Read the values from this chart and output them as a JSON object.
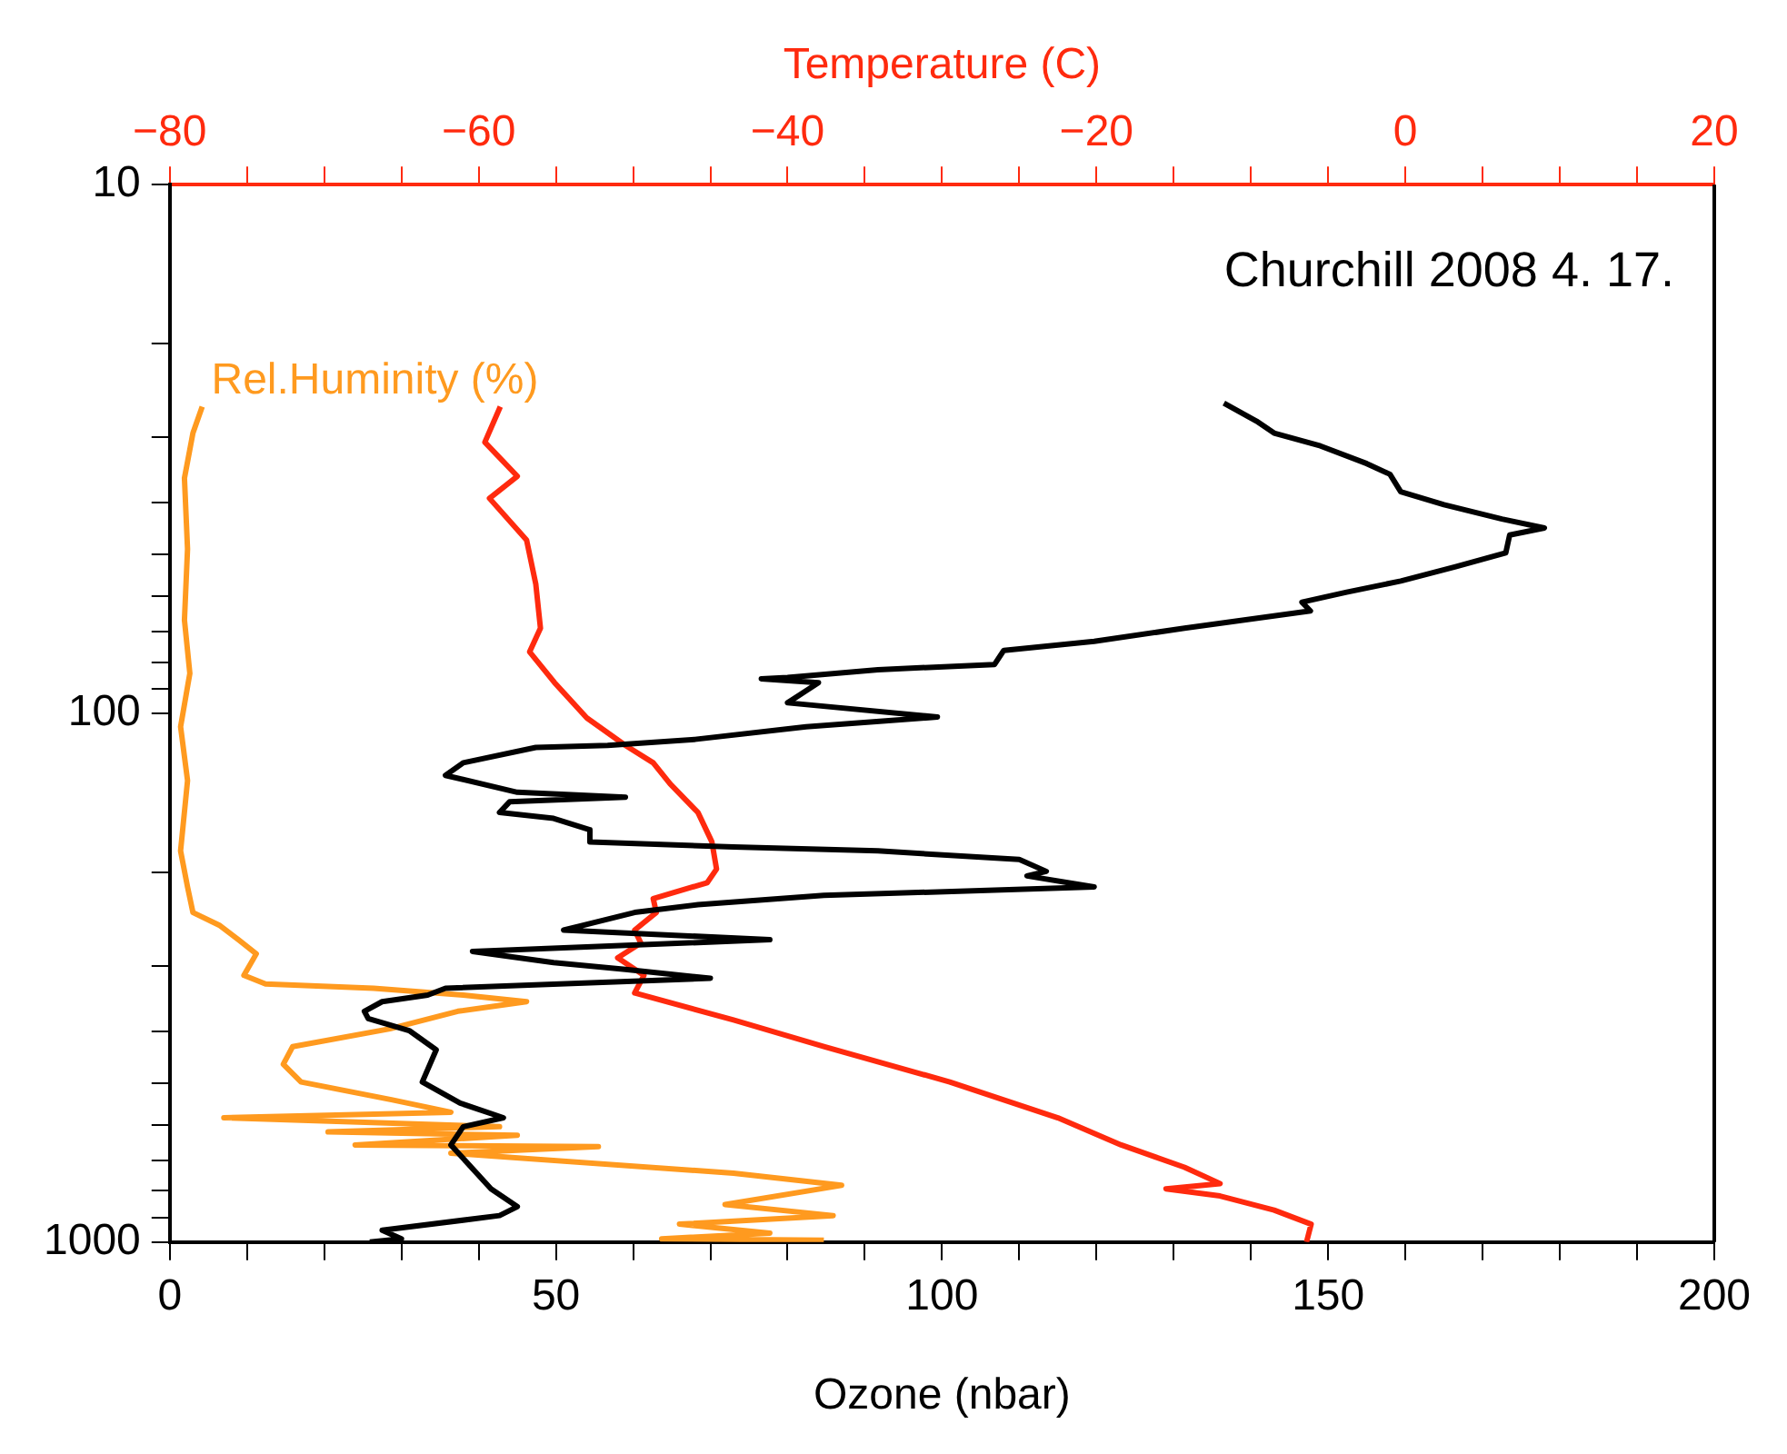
{
  "chart_data": {
    "type": "line",
    "xlabel": "Ozone (nbar)",
    "x2label": "Temperature (C)",
    "annotations": [
      "Churchill 2008 4. 17."
    ],
    "xlim": [
      0,
      200
    ],
    "xticks": [
      0,
      {
        "value": 10,
        "label": null
      },
      {
        "value": 20,
        "label": null
      },
      {
        "value": 30,
        "label": null
      },
      {
        "value": 40,
        "label": null
      },
      50,
      {
        "value": 60,
        "label": null
      },
      {
        "value": 70,
        "label": null
      },
      {
        "value": 80,
        "label": null
      },
      {
        "value": 90,
        "label": null
      },
      100,
      {
        "value": 110,
        "label": null
      },
      {
        "value": 120,
        "label": null
      },
      {
        "value": 130,
        "label": null
      },
      {
        "value": 140,
        "label": null
      },
      150,
      {
        "value": 160,
        "label": null
      },
      {
        "value": 170,
        "label": null
      },
      {
        "value": 180,
        "label": null
      },
      {
        "value": 190,
        "label": null
      },
      200
    ],
    "x2lim": [
      -80,
      20
    ],
    "x2ticks": [
      -80,
      {
        "value": -75,
        "label": null
      },
      {
        "value": -70,
        "label": null
      },
      {
        "value": -65,
        "label": null
      },
      -60,
      {
        "value": -55,
        "label": null
      },
      {
        "value": -50,
        "label": null
      },
      {
        "value": -45,
        "label": null
      },
      -40,
      {
        "value": -35,
        "label": null
      },
      {
        "value": -30,
        "label": null
      },
      {
        "value": -25,
        "label": null
      },
      -20,
      {
        "value": -15,
        "label": null
      },
      {
        "value": -10,
        "label": null
      },
      {
        "value": -5,
        "label": null
      },
      0,
      {
        "value": 5,
        "label": null
      },
      {
        "value": 10,
        "label": null
      },
      {
        "value": 15,
        "label": null
      },
      20
    ],
    "ylim": [
      1000,
      10
    ],
    "log": "y",
    "yticks": [
      10,
      {
        "value": 20,
        "label": null
      },
      {
        "value": 30,
        "label": null
      },
      {
        "value": 40,
        "label": null
      },
      {
        "value": 50,
        "label": null
      },
      {
        "value": 60,
        "label": null
      },
      {
        "value": 70,
        "label": null
      },
      {
        "value": 80,
        "label": null
      },
      {
        "value": 90,
        "label": null
      },
      100,
      {
        "value": 200,
        "label": null
      },
      {
        "value": 300,
        "label": null
      },
      {
        "value": 400,
        "label": null
      },
      {
        "value": 500,
        "label": null
      },
      {
        "value": 600,
        "label": null
      },
      {
        "value": 700,
        "label": null
      },
      {
        "value": 800,
        "label": null
      },
      {
        "value": 900,
        "label": null
      },
      1000
    ],
    "grid": false,
    "legend": false,
    "marker": "none",
    "line_style": "solid",
    "series": [
      {
        "type": "line",
        "color": "#000000",
        "x": [
          136.5,
          140.7,
          143,
          149,
          155,
          158,
          159.4,
          165,
          172.5,
          178,
          173.5,
          173,
          166.5,
          159.4,
          152.4,
          146.6,
          147.7,
          131.4,
          119.7,
          108,
          106.8,
          91.7,
          80,
          76.6,
          84,
          80,
          99.4,
          82.4,
          68,
          56.7,
          47.4,
          38,
          35.7,
          45,
          59,
          44,
          42.7,
          49.7,
          54.4,
          54.4,
          73,
          91.7,
          110,
          113.5,
          111,
          119.7,
          84.7,
          68.4,
          60.2,
          51,
          77.7,
          39.2,
          49.7,
          59,
          70,
          35.7,
          33.4,
          27.5,
          25.2,
          25.7,
          31,
          34.5,
          32.7,
          37.6,
          43.2,
          38,
          36.4,
          41.6,
          45,
          42.7,
          27.5,
          30,
          25.9
        ],
        "values": [
          25.9,
          28,
          29.5,
          31.2,
          33.7,
          35.3,
          38.1,
          40.3,
          42.9,
          44.6,
          46,
          49.7,
          52.8,
          56.2,
          59,
          61.6,
          64,
          69,
          73.1,
          76,
          80.8,
          82.7,
          85.5,
          86,
          87.5,
          95.5,
          101.6,
          106,
          112,
          115,
          116,
          124,
          131,
          141,
          144,
          147,
          154,
          158,
          166,
          175,
          179,
          182,
          189,
          199,
          203,
          213,
          221,
          230,
          238,
          257,
          268,
          282,
          296,
          305,
          317,
          331,
          341,
          351,
          366,
          378,
          398,
          433,
          498,
          546,
          582,
          605,
          655,
          793,
          857,
          891,
          950,
          986,
          1000
        ]
      },
      {
        "type": "line",
        "color": "#ff2a0e",
        "axis": "x2",
        "x": [
          -58.6,
          -59.6,
          -57.5,
          -59.3,
          -56.9,
          -56.3,
          -56,
          -56.7,
          -55.1,
          -53,
          -50.5,
          -48.7,
          -47.6,
          -45.8,
          -44.9,
          -44.6,
          -45.2,
          -48.7,
          -48.5,
          -49.9,
          -49.5,
          -51,
          -49.3,
          -49.9,
          -43.5,
          -37.6,
          -29.5,
          -22.5,
          -18.4,
          -14.3,
          -12,
          -15.5,
          -12,
          -8.5,
          -6.1,
          -6.4
        ],
        "values": [
          26.3,
          30.7,
          35.6,
          39.2,
          47,
          57,
          69,
          76.5,
          87.4,
          102,
          115,
          124,
          136,
          154,
          175,
          197,
          209,
          224,
          238,
          257,
          272,
          290,
          313,
          338,
          380,
          427,
          498,
          582,
          655,
          722,
          775,
          793,
          818,
          870,
          925,
          1000
        ]
      },
      {
        "type": "line",
        "name": "Rel.Huminity (%)",
        "color": "#ff9a1f",
        "x": [
          4.2,
          3,
          1.9,
          2.3,
          1.9,
          2.6,
          1.4,
          2.3,
          1.4,
          2.3,
          3,
          6.5,
          8.9,
          11.2,
          9.6,
          12.4,
          26.4,
          38,
          46.2,
          37.3,
          28.5,
          15.9,
          14.7,
          17,
          28.7,
          36.4,
          7,
          42.7,
          20.5,
          45,
          24,
          55.5,
          36.4,
          73,
          87,
          71.9,
          85.9,
          66,
          77.7,
          63.7,
          84.7
        ],
        "values": [
          26.3,
          29.5,
          35.9,
          48.9,
          66.6,
          84,
          106,
          134,
          182,
          213,
          238,
          252,
          268,
          285,
          313,
          325,
          331,
          341,
          351,
          366,
          395,
          427,
          461,
          498,
          538,
          568,
          582,
          605,
          619,
          628,
          655,
          660,
          679,
          741,
          781,
          849,
          891,
          925,
          962,
          986,
          992
        ]
      }
    ]
  }
}
